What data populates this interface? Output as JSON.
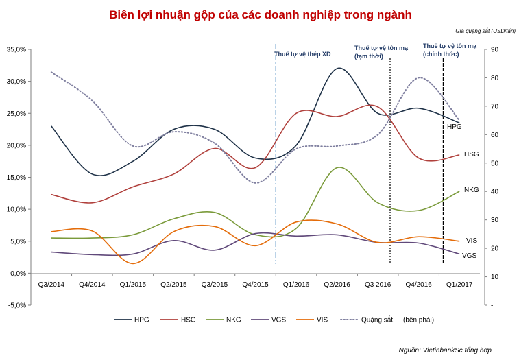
{
  "chart_data": {
    "type": "line",
    "title": "Biên lợi nhuận gộp của các doanh nghiệp trong ngành",
    "right_axis_note": "Giá quặng sắt (USD/tấn)",
    "source": "Nguồn: VietinbankSc tổng hợp",
    "categories": [
      "Q3/2014",
      "Q4/2014",
      "Q1/2015",
      "Q2/2015",
      "Q3/2015",
      "Q4/2015",
      "Q1/2016",
      "Q2/2016",
      "Q3 2016",
      "Q4/2016",
      "Q1/2017"
    ],
    "y_left": {
      "min": -5,
      "max": 35,
      "step": 5,
      "tick_labels": [
        "-5,0%",
        "0,0%",
        "5,0%",
        "10,0%",
        "15,0%",
        "20,0%",
        "25,0%",
        "30,0%",
        "35,0%"
      ]
    },
    "y_right": {
      "min": 0,
      "max": 90,
      "step": 10,
      "tick_labels": [
        "-",
        "10",
        "20",
        "30",
        "40",
        "50",
        "60",
        "70",
        "80",
        "90"
      ]
    },
    "series": [
      {
        "name": "HPG",
        "axis": "left",
        "color": "#1f3248",
        "style": "solid",
        "values": [
          23.0,
          15.5,
          17.5,
          22.5,
          22.5,
          18.0,
          20.0,
          32.0,
          25.0,
          25.8,
          23.5
        ]
      },
      {
        "name": "HSG",
        "axis": "left",
        "color": "#b0403c",
        "style": "solid",
        "values": [
          12.3,
          11.0,
          13.5,
          15.5,
          19.5,
          16.5,
          25.0,
          24.5,
          26.0,
          18.0,
          18.5
        ]
      },
      {
        "name": "NKG",
        "axis": "left",
        "color": "#7a9a3a",
        "style": "solid",
        "values": [
          5.5,
          5.5,
          6.0,
          8.5,
          9.5,
          6.0,
          7.0,
          16.5,
          11.0,
          9.8,
          12.8
        ]
      },
      {
        "name": "VGS",
        "axis": "left",
        "color": "#60497a",
        "style": "solid",
        "values": [
          3.3,
          2.9,
          3.0,
          5.1,
          3.6,
          6.2,
          5.8,
          6.0,
          4.8,
          4.7,
          3.0
        ]
      },
      {
        "name": "VIS",
        "axis": "left",
        "color": "#e46c0a",
        "style": "solid",
        "values": [
          6.5,
          6.6,
          1.5,
          6.5,
          7.3,
          4.3,
          8.0,
          7.7,
          4.8,
          5.7,
          5.0
        ]
      },
      {
        "name": "Quặng sắt",
        "axis": "right",
        "color": "#7f7f9f",
        "style": "dotted",
        "values": [
          82,
          72,
          56,
          61,
          57,
          43,
          55,
          56,
          60,
          80,
          65
        ]
      }
    ],
    "end_labels": [
      "HPG",
      "HSG",
      "NKG",
      "VIS",
      "VGS"
    ],
    "annotations": [
      {
        "text": "Thuế tự vệ thép XD",
        "at_x": 6.0,
        "style": "dashdot",
        "color": "#2e75b6"
      },
      {
        "text_lines": [
          "Thuế tự vệ tôn mạ",
          "(tạm thời)"
        ],
        "at_x": 8.8,
        "style": "dotted",
        "color": "#000000"
      },
      {
        "text_lines": [
          "Thuế tự vệ tôn mạ",
          "(chính thức)"
        ],
        "at_x": 10.1,
        "style": "dashed",
        "color": "#000000"
      }
    ],
    "legend": {
      "position": "bottom",
      "items": [
        "HPG",
        "HSG",
        "NKG",
        "VGS",
        "VIS",
        "Quặng sắt"
      ],
      "suffix": "(bên phải)"
    },
    "grid": false
  }
}
